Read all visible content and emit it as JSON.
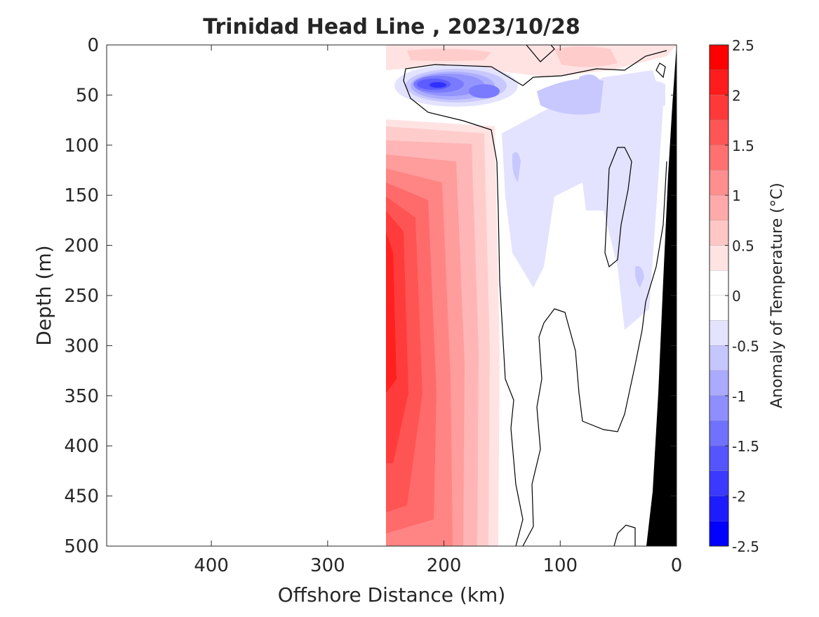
{
  "chart_data": {
    "type": "heatmap",
    "title": "Trinidad Head Line , 2023/10/28",
    "xlabel": "Offshore Distance (km)",
    "ylabel": "Depth (m)",
    "xlim": [
      490,
      0
    ],
    "ylim": [
      0,
      500
    ],
    "x_reversed": true,
    "y_reversed": true,
    "x_ticks": [
      400,
      300,
      200,
      100,
      0
    ],
    "y_ticks": [
      0,
      50,
      100,
      150,
      200,
      250,
      300,
      350,
      400,
      450,
      500
    ],
    "data_extent_km": [
      250,
      0
    ],
    "colorbar": {
      "label": "Anomaly of Temperature (°C)",
      "range": [
        -2.5,
        2.5
      ],
      "step": 0.25,
      "ticks": [
        2.5,
        2,
        1.5,
        1,
        0.5,
        0,
        -0.5,
        -1,
        -1.5,
        -2,
        -2.5
      ],
      "tick_labels": [
        "2.5",
        "2",
        "1.5",
        "1",
        "0.5",
        "0",
        "-0.5",
        "-1",
        "-1.5",
        "-2",
        "-2.5"
      ],
      "colors": {
        "max": "#ff0000",
        "zero": "#ffffff",
        "min": "#0000ff"
      }
    },
    "anomaly_features": [
      {
        "x_km": 240,
        "depth_m": 220,
        "anomaly_c": 2.3
      },
      {
        "x_km": 210,
        "depth_m": 40,
        "anomaly_c": -1.8
      },
      {
        "x_km": 175,
        "depth_m": 45,
        "anomaly_c": -1.2
      },
      {
        "x_km": 80,
        "depth_m": 50,
        "anomaly_c": -0.6
      },
      {
        "x_km": 110,
        "depth_m": 180,
        "anomaly_c": -0.4
      },
      {
        "x_km": 80,
        "depth_m": 10,
        "anomaly_c": 0.8
      },
      {
        "x_km": 140,
        "depth_m": 300,
        "anomaly_c": 0.1
      }
    ],
    "bathymetry": "black wedge at the shelf (0–25 km)",
    "grid": false,
    "contour_level_c": 0
  }
}
